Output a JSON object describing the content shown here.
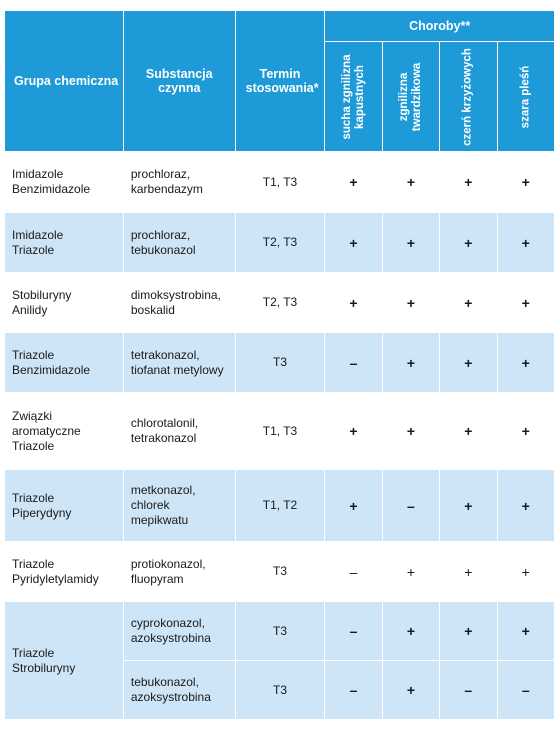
{
  "header": {
    "group_label": "Grupa chemiczna",
    "substance_label": "Substancja czynna",
    "term_label": "Termin stosowania*",
    "diseases_label": "Choroby**",
    "diseases": [
      "sucha zgnilizna kapustnych",
      "zgnilizna twardzikowa",
      "czerń krzyżowych",
      "szara pleśń"
    ]
  },
  "rows": [
    {
      "group": "Imidazole\nBenzimidazole",
      "substance": "prochloraz,\nkarbendazym",
      "term": "T1, T3",
      "effects": [
        "+",
        "+",
        "+",
        "+"
      ]
    },
    {
      "group": "Imidazole\nTriazole",
      "substance": "prochloraz,\ntebukonazol",
      "term": "T2, T3",
      "effects": [
        "+",
        "+",
        "+",
        "+"
      ]
    },
    {
      "group": "Stobiluryny\nAnilidy",
      "substance": "dimoksystrobina,\nboskalid",
      "term": "T2, T3",
      "effects": [
        "+",
        "+",
        "+",
        "+"
      ]
    },
    {
      "group": "Triazole\nBenzimidazole",
      "substance": "tetrakonazol,\ntiofanat metylowy",
      "term": "T3",
      "effects": [
        "–",
        "+",
        "+",
        "+"
      ]
    },
    {
      "group": "Związki\naromatyczne\nTriazole",
      "substance": "chlorotalonil,\ntetrakonazol",
      "term": "T1, T3",
      "effects": [
        "+",
        "+",
        "+",
        "+"
      ]
    },
    {
      "group": "Triazole\nPiperydyny",
      "substance": "metkonazol,\nchlorek\nmepikwatu",
      "term": "T1, T2",
      "effects": [
        "+",
        "–",
        "+",
        "+"
      ]
    },
    {
      "group": "Triazole\nPyridyletylamidy",
      "substance": "protiokonazol,\nfluopyram",
      "term": "T3",
      "effects": [
        "–",
        "+",
        "+",
        "+"
      ]
    },
    {
      "group": "Triazole\nStrobiluryny",
      "substance": "cyprokonazol,\nazoksystrobina",
      "term": "T3",
      "effects": [
        "–",
        "+",
        "+",
        "+"
      ]
    },
    {
      "group": "",
      "substance": "tebukonazol,\nazoksystrobina",
      "term": "T3",
      "effects": [
        "–",
        "+",
        "–",
        "–"
      ]
    }
  ]
}
